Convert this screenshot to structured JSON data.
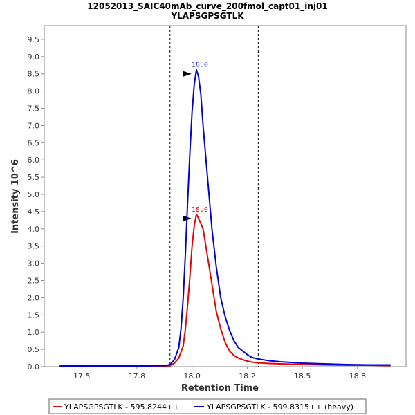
{
  "title_line1": "12052013_SAIC40mAb_curve_200fmol_capt01_inj01",
  "title_line2": "YLAPSGPSGTLK",
  "chart_data": {
    "type": "line",
    "xlabel": "Retention Time",
    "ylabel": "Intensity 10^6",
    "xlim": [
      17.33,
      18.97
    ],
    "ylim": [
      0,
      9.9
    ],
    "x_ticks": [
      17.5,
      17.75,
      18.0,
      18.25,
      18.5,
      18.75
    ],
    "x_tick_labels": [
      "17.5",
      "17.8",
      "18.0",
      "18.2",
      "18.5",
      "18.8"
    ],
    "y_ticks": [
      0,
      0.5,
      1,
      1.5,
      2,
      2.5,
      3,
      3.5,
      4,
      4.5,
      5,
      5.5,
      6,
      6.5,
      7,
      7.5,
      8,
      8.5,
      9,
      9.5
    ],
    "boundaries": [
      17.9,
      18.3
    ],
    "grid": false,
    "legend_position": "bottom",
    "series": [
      {
        "name": "YLAPSGPSGTLK - 595.8244++",
        "color": "#ee0000",
        "peak_label": "18.0",
        "peak": [
          18.01,
          4.42
        ],
        "points": [
          [
            17.4,
            0.02
          ],
          [
            17.6,
            0.02
          ],
          [
            17.8,
            0.02
          ],
          [
            17.88,
            0.02
          ],
          [
            17.9,
            0.03
          ],
          [
            17.92,
            0.1
          ],
          [
            17.94,
            0.25
          ],
          [
            17.96,
            0.6
          ],
          [
            17.97,
            1.1
          ],
          [
            17.98,
            1.8
          ],
          [
            17.99,
            2.6
          ],
          [
            18.0,
            3.5
          ],
          [
            18.01,
            4.1
          ],
          [
            18.02,
            4.42
          ],
          [
            18.03,
            4.3
          ],
          [
            18.05,
            4.0
          ],
          [
            18.07,
            3.2
          ],
          [
            18.09,
            2.4
          ],
          [
            18.11,
            1.6
          ],
          [
            18.13,
            1.1
          ],
          [
            18.15,
            0.7
          ],
          [
            18.17,
            0.45
          ],
          [
            18.19,
            0.32
          ],
          [
            18.21,
            0.25
          ],
          [
            18.23,
            0.2
          ],
          [
            18.25,
            0.16
          ],
          [
            18.27,
            0.13
          ],
          [
            18.3,
            0.11
          ],
          [
            18.35,
            0.09
          ],
          [
            18.4,
            0.08
          ],
          [
            18.5,
            0.06
          ],
          [
            18.6,
            0.05
          ],
          [
            18.7,
            0.04
          ],
          [
            18.8,
            0.04
          ],
          [
            18.9,
            0.03
          ]
        ]
      },
      {
        "name": "YLAPSGPSGTLK - 599.8315++ (heavy)",
        "color": "#0000dd",
        "peak_label": "18.0",
        "peak": [
          18.01,
          8.62
        ],
        "points": [
          [
            17.4,
            0.02
          ],
          [
            17.6,
            0.02
          ],
          [
            17.8,
            0.02
          ],
          [
            17.88,
            0.03
          ],
          [
            17.9,
            0.06
          ],
          [
            17.92,
            0.2
          ],
          [
            17.94,
            0.55
          ],
          [
            17.95,
            1.1
          ],
          [
            17.96,
            2.0
          ],
          [
            17.97,
            3.3
          ],
          [
            17.98,
            4.8
          ],
          [
            17.99,
            6.2
          ],
          [
            18.0,
            7.4
          ],
          [
            18.01,
            8.2
          ],
          [
            18.02,
            8.62
          ],
          [
            18.03,
            8.4
          ],
          [
            18.04,
            7.9
          ],
          [
            18.05,
            7.0
          ],
          [
            18.07,
            5.5
          ],
          [
            18.09,
            4.0
          ],
          [
            18.11,
            2.9
          ],
          [
            18.13,
            2.0
          ],
          [
            18.15,
            1.45
          ],
          [
            18.17,
            1.05
          ],
          [
            18.19,
            0.75
          ],
          [
            18.21,
            0.55
          ],
          [
            18.23,
            0.45
          ],
          [
            18.25,
            0.35
          ],
          [
            18.27,
            0.27
          ],
          [
            18.3,
            0.22
          ],
          [
            18.35,
            0.17
          ],
          [
            18.4,
            0.14
          ],
          [
            18.45,
            0.12
          ],
          [
            18.5,
            0.1
          ],
          [
            18.6,
            0.08
          ],
          [
            18.7,
            0.06
          ],
          [
            18.8,
            0.05
          ],
          [
            18.9,
            0.05
          ]
        ]
      }
    ]
  }
}
